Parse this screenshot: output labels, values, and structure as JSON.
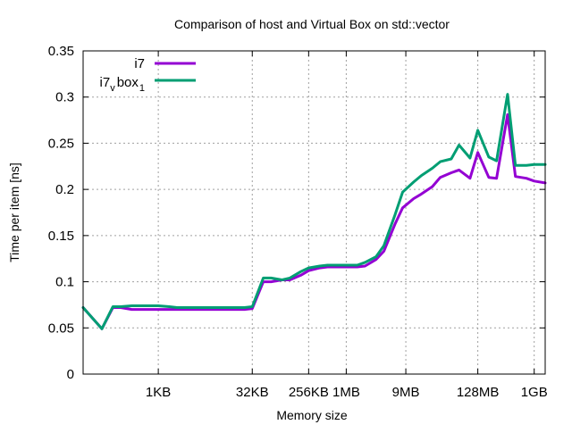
{
  "chart_data": {
    "type": "line",
    "title": "Comparison of host and Virtual Box on std::vector",
    "xlabel": "Memory size",
    "ylabel": "Time per item [ns]",
    "x_scale": "log2",
    "x_unit": "bytes",
    "xlim": [
      64,
      1610612736
    ],
    "ylim": [
      0,
      0.35
    ],
    "y_ticks": [
      0,
      0.05,
      0.1,
      0.15,
      0.2,
      0.25,
      0.3,
      0.35
    ],
    "y_tick_labels": [
      "0",
      "0.05",
      "0.1",
      "0.15",
      "0.2",
      "0.25",
      "0.3",
      "0.35"
    ],
    "x_ticks": [
      {
        "value": 1024,
        "label": "1KB"
      },
      {
        "value": 32768,
        "label": "32KB"
      },
      {
        "value": 262144,
        "label": "256KB"
      },
      {
        "value": 1048576,
        "label": "1MB"
      },
      {
        "value": 9437184,
        "label": "9MB"
      },
      {
        "value": 134217728,
        "label": "128MB"
      },
      {
        "value": 1073741824,
        "label": "1GB"
      }
    ],
    "grid": true,
    "legend_position": "top-left",
    "x": [
      64,
      128,
      192,
      256,
      384,
      512,
      768,
      1024,
      1536,
      2048,
      3072,
      4096,
      6144,
      8192,
      12288,
      16384,
      24576,
      32768,
      49152,
      65536,
      98304,
      131072,
      196608,
      262144,
      393216,
      524288,
      786432,
      1048576,
      1572864,
      2097152,
      3145728,
      4194304,
      6291456,
      8388608,
      12582912,
      16777216,
      25165824,
      33554432,
      50331648,
      67108864,
      100663296,
      134217728,
      201326592,
      268435456,
      402653184,
      536870912,
      805306368,
      1073741824,
      1610612736
    ],
    "series": [
      {
        "name": "i7",
        "color": "#9400d3",
        "values": [
          0.072,
          0.049,
          0.072,
          0.072,
          0.07,
          0.07,
          0.07,
          0.07,
          0.07,
          0.07,
          0.07,
          0.07,
          0.07,
          0.07,
          0.07,
          0.07,
          0.07,
          0.071,
          0.1,
          0.1,
          0.102,
          0.102,
          0.107,
          0.112,
          0.115,
          0.116,
          0.116,
          0.116,
          0.116,
          0.117,
          0.124,
          0.133,
          0.162,
          0.18,
          0.19,
          0.195,
          0.203,
          0.213,
          0.218,
          0.221,
          0.212,
          0.24,
          0.213,
          0.212,
          0.281,
          0.214,
          0.212,
          0.209,
          0.207
        ]
      },
      {
        "name": "i7_vbox_1",
        "name_display": {
          "base": "i7",
          "sub": "v",
          "mid": "box",
          "sub2": "1"
        },
        "color": "#009e73",
        "values": [
          0.072,
          0.049,
          0.073,
          0.073,
          0.074,
          0.074,
          0.074,
          0.074,
          0.073,
          0.072,
          0.072,
          0.072,
          0.072,
          0.072,
          0.072,
          0.072,
          0.072,
          0.073,
          0.104,
          0.104,
          0.102,
          0.104,
          0.111,
          0.115,
          0.117,
          0.118,
          0.118,
          0.118,
          0.118,
          0.121,
          0.127,
          0.139,
          0.172,
          0.197,
          0.208,
          0.215,
          0.223,
          0.23,
          0.233,
          0.248,
          0.234,
          0.264,
          0.235,
          0.231,
          0.303,
          0.226,
          0.226,
          0.227,
          0.227
        ]
      }
    ]
  }
}
